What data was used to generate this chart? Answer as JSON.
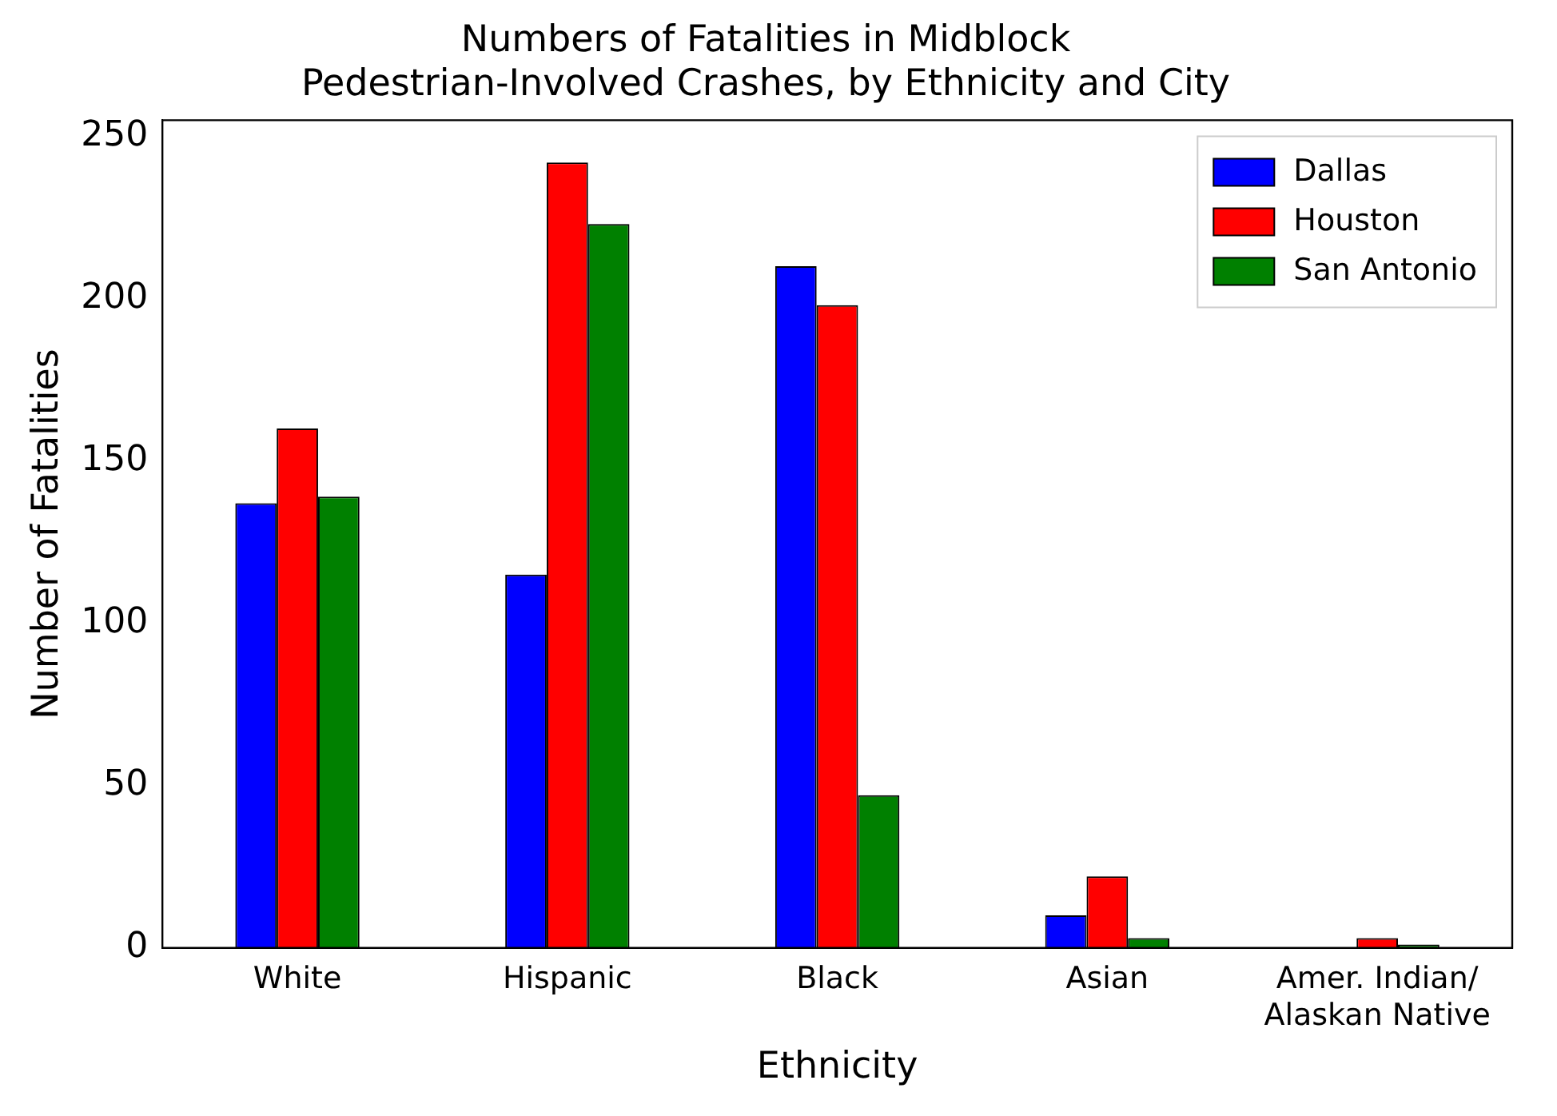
{
  "chart_data": {
    "type": "bar",
    "title": "Numbers of Fatalities in Midblock\nPedestrian-Involved Crashes, by Ethnicity and City",
    "xlabel": "Ethnicity",
    "ylabel": "Number of Fatalities",
    "categories": [
      "White",
      "Hispanic",
      "Black",
      "Asian",
      "Amer. Indian/\nAlaskan Native"
    ],
    "series": [
      {
        "name": "Dallas",
        "color": "#0000ff",
        "values": [
          137,
          115,
          210,
          10,
          0
        ]
      },
      {
        "name": "Houston",
        "color": "#ff0000",
        "values": [
          160,
          242,
          198,
          22,
          3
        ]
      },
      {
        "name": "San Antonio",
        "color": "#008000",
        "values": [
          139,
          223,
          47,
          3,
          1
        ]
      }
    ],
    "ylim": [
      0,
      255
    ],
    "yticks": [
      0,
      50,
      100,
      150,
      200,
      250
    ],
    "grid": false,
    "legend": "top right"
  }
}
